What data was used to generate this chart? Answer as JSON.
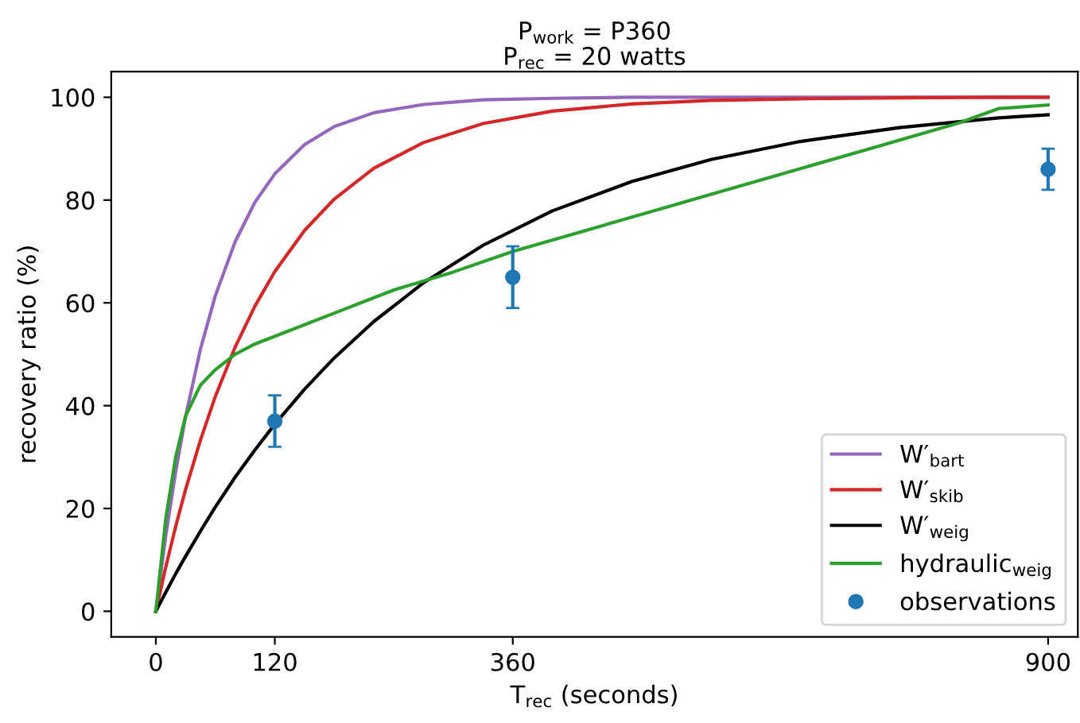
{
  "chart_data": {
    "type": "line",
    "title": "P$_{work}$ = P360\nP$_{rec}$ = 20 watts",
    "xlabel": "T$_{rec}$ (seconds)",
    "ylabel": "recovery ratio (%)",
    "x": [
      0,
      10,
      20,
      30,
      45,
      60,
      80,
      100,
      120,
      150,
      180,
      220,
      270,
      330,
      400,
      480,
      560,
      650,
      750,
      850,
      900
    ],
    "series": [
      {
        "name": "W′$_{bart}$",
        "color": "#9467bd",
        "values": [
          0,
          14.7,
          27.2,
          37.9,
          51.0,
          61.4,
          71.9,
          79.6,
          85.1,
          90.8,
          94.3,
          97.0,
          98.6,
          99.5,
          99.8,
          100,
          100,
          100,
          100,
          100,
          100
        ]
      },
      {
        "name": "W′$_{skib}$",
        "color": "#d62728",
        "values": [
          0,
          8.6,
          16.5,
          23.7,
          33.3,
          41.8,
          51.4,
          59.4,
          66.1,
          74.1,
          80.2,
          86.2,
          91.2,
          94.9,
          97.3,
          98.7,
          99.4,
          99.7,
          99.9,
          100,
          100
        ]
      },
      {
        "name": "W′$_{weig}$",
        "color": "#000000",
        "values": [
          0,
          3.7,
          7.3,
          10.7,
          15.6,
          20.3,
          26.1,
          31.4,
          36.4,
          43.2,
          49.3,
          56.4,
          63.9,
          71.2,
          77.9,
          83.6,
          87.9,
          91.4,
          94.1,
          96.0,
          96.6
        ]
      },
      {
        "name": "hydraulic$_{weig}$",
        "color": "#2ca02c",
        "x": [
          0,
          10,
          20,
          30,
          45,
          60,
          80,
          100,
          120,
          180,
          240,
          300,
          360,
          450,
          540,
          630,
          720,
          810,
          850,
          900
        ],
        "values": [
          0,
          18,
          30,
          38,
          44,
          47,
          50,
          52,
          53.5,
          58,
          62.5,
          66,
          70,
          75,
          80,
          85,
          90,
          95,
          97.8,
          98.5
        ]
      },
      {
        "name": "observations",
        "type": "scatter",
        "color": "#1f77b4",
        "marker": "circle",
        "x": [
          120,
          360,
          900
        ],
        "values": [
          37,
          65,
          86
        ],
        "errors": [
          [
            32,
            42
          ],
          [
            59,
            71
          ],
          [
            82,
            90
          ]
        ]
      }
    ],
    "xlim": [
      -45,
      930
    ],
    "ylim": [
      -5,
      105
    ],
    "xticks": [
      0,
      120,
      360,
      900
    ],
    "yticks": [
      0,
      20,
      40,
      60,
      80,
      100
    ],
    "grid": false,
    "legend": "bottom right",
    "line_style": "solid"
  }
}
